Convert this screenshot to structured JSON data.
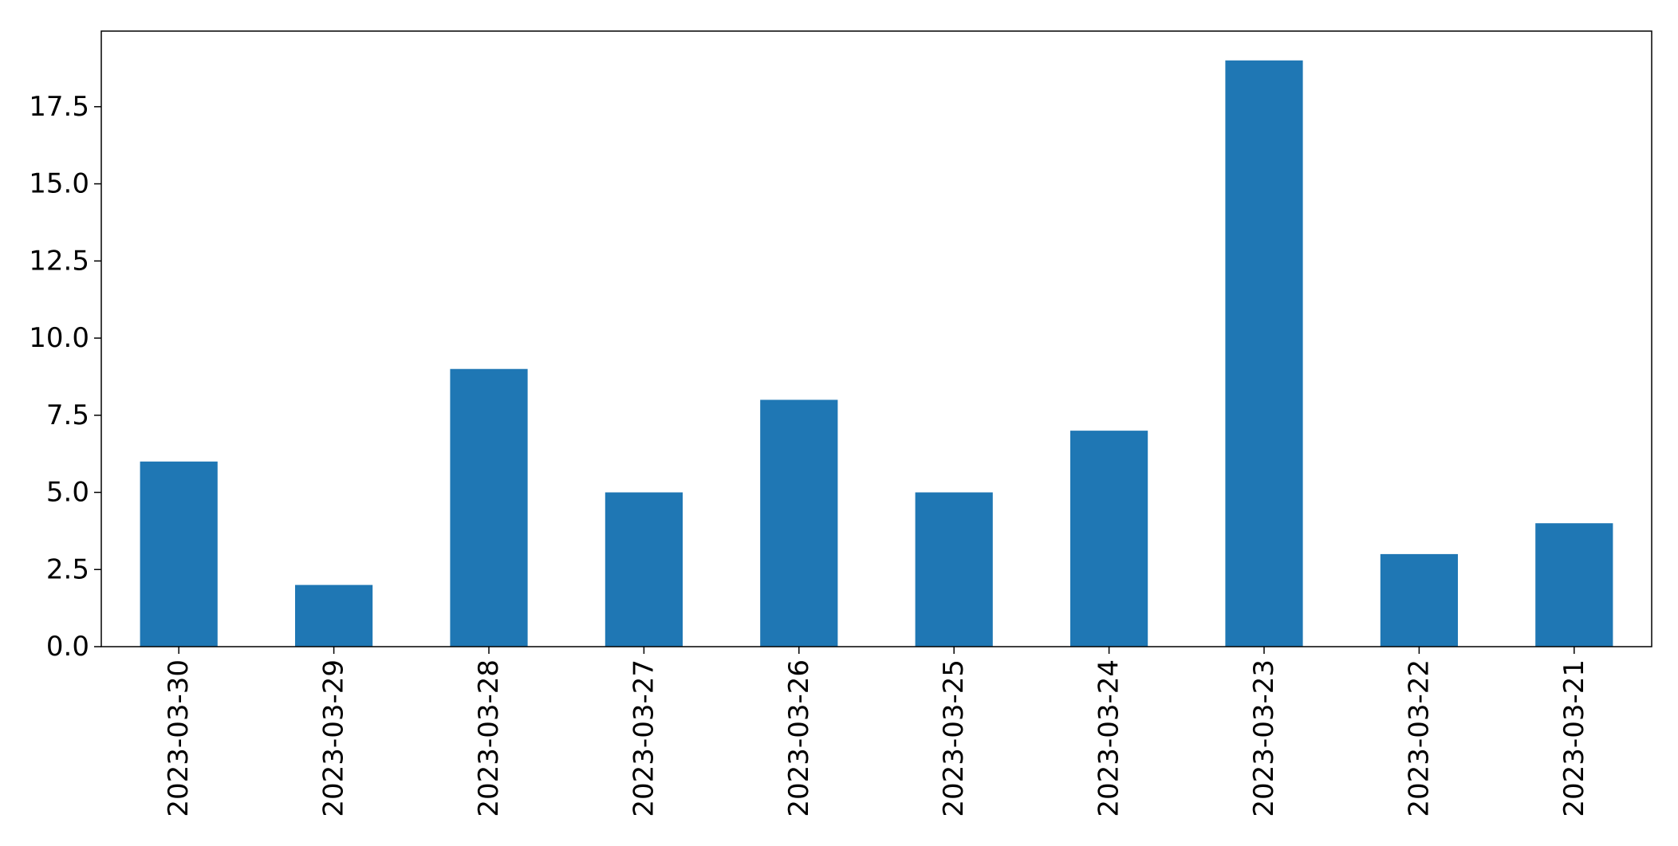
{
  "chart_data": {
    "type": "bar",
    "categories": [
      "2023-03-30",
      "2023-03-29",
      "2023-03-28",
      "2023-03-27",
      "2023-03-26",
      "2023-03-25",
      "2023-03-24",
      "2023-03-23",
      "2023-03-22",
      "2023-03-21"
    ],
    "values": [
      6,
      2,
      9,
      5,
      8,
      5,
      7,
      19,
      3,
      4
    ],
    "title": "",
    "xlabel": "",
    "ylabel": "",
    "ylim": [
      0,
      19.95
    ],
    "yticks": [
      "0.0",
      "2.5",
      "5.0",
      "7.5",
      "10.0",
      "12.5",
      "15.0",
      "17.5"
    ],
    "bar_color": "#1f77b4",
    "grid": false,
    "x_tick_rotation": "vertical"
  }
}
